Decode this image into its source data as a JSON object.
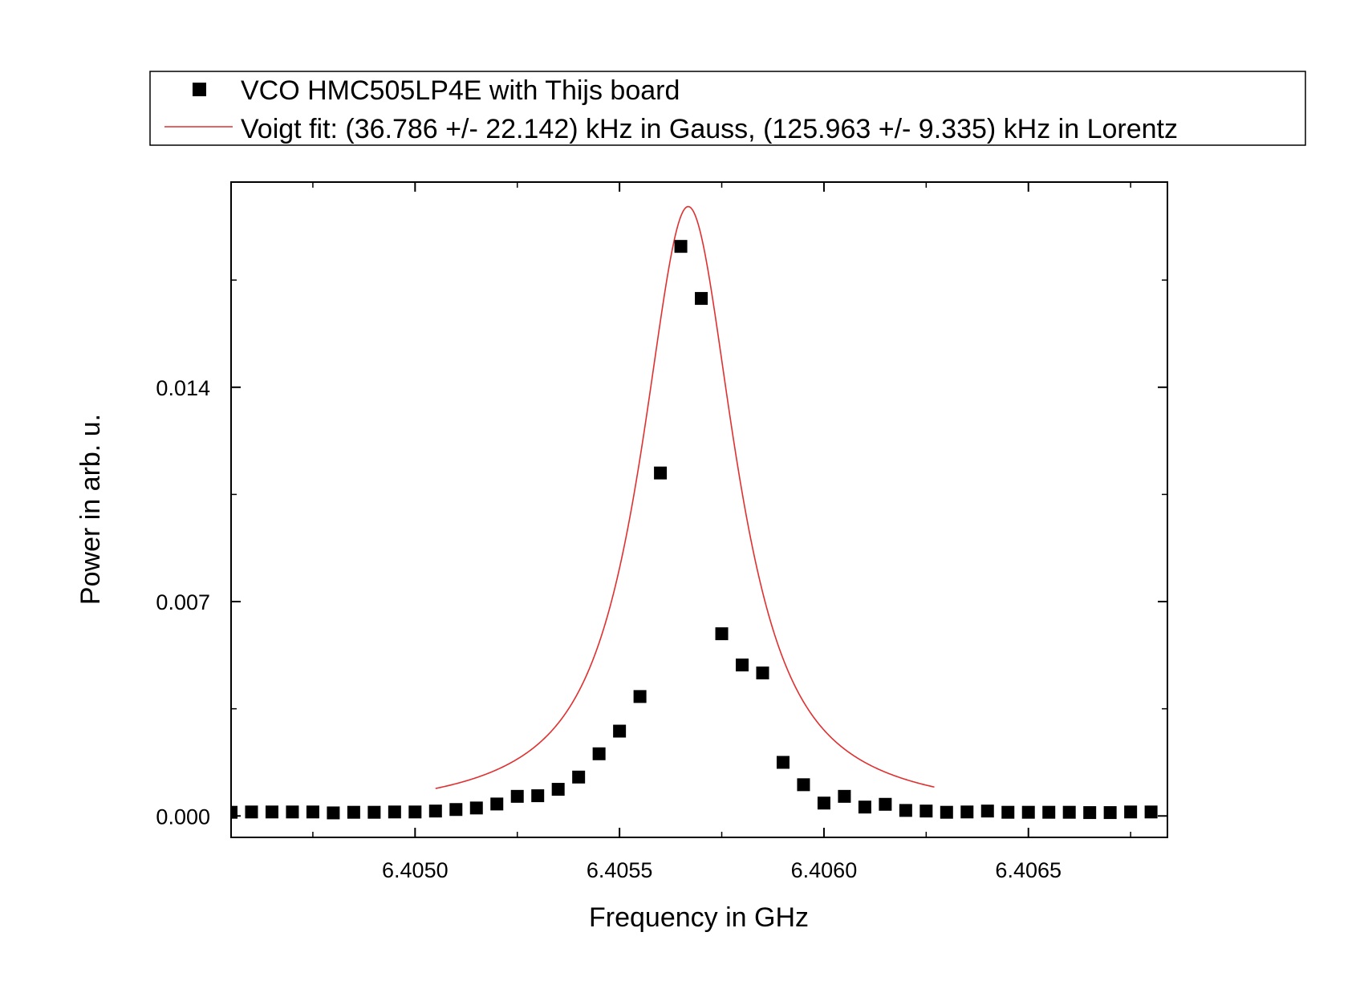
{
  "chart_data": {
    "type": "scatter",
    "xlabel": "Frequency in GHz",
    "ylabel": "Power in arb. u.",
    "xlim": [
      6.40455,
      6.40684
    ],
    "ylim": [
      -0.0007,
      0.0207
    ],
    "x_ticks": [
      6.405,
      6.4055,
      6.406,
      6.4065
    ],
    "x_tick_labels": [
      "6.4050",
      "6.4055",
      "6.4060",
      "6.4065"
    ],
    "y_ticks": [
      0.0,
      0.007,
      0.014
    ],
    "y_tick_labels": [
      "0.000",
      "0.007",
      "0.014"
    ],
    "legend_position": "top, above plot",
    "series": [
      {
        "name": "VCO HMC505LP4E with Thijs board",
        "kind": "markers",
        "marker": "square",
        "color": "#000000",
        "x": [
          6.40455,
          6.4046,
          6.40465,
          6.4047,
          6.40475,
          6.4048,
          6.40485,
          6.4049,
          6.40495,
          6.405,
          6.40505,
          6.4051,
          6.40515,
          6.4052,
          6.40525,
          6.4053,
          6.40535,
          6.4054,
          6.40545,
          6.4055,
          6.40555,
          6.4056,
          6.40565,
          6.4057,
          6.40575,
          6.4058,
          6.40585,
          6.4059,
          6.40595,
          6.406,
          6.40605,
          6.4061,
          6.40615,
          6.4062,
          6.40625,
          6.4063,
          6.40635,
          6.4064,
          6.40645,
          6.4065,
          6.40655,
          6.4066,
          6.40665,
          6.4067,
          6.40675,
          6.4068
        ],
        "y": [
          0.00012,
          0.00013,
          0.00013,
          0.00013,
          0.00013,
          0.0001,
          0.00012,
          0.00012,
          0.00013,
          0.00013,
          0.00016,
          0.00021,
          0.00026,
          0.00039,
          0.00064,
          0.00066,
          0.00087,
          0.00127,
          0.00203,
          0.00277,
          0.0039,
          0.0112,
          0.0186,
          0.0169,
          0.00595,
          0.00493,
          0.00467,
          0.00175,
          0.00102,
          0.00042,
          0.00064,
          0.00029,
          0.00038,
          0.00018,
          0.00016,
          0.00012,
          0.00013,
          0.00016,
          0.00012,
          0.00012,
          0.00012,
          0.00012,
          0.00011,
          0.00011,
          0.00013,
          0.00013
        ]
      },
      {
        "name": "Voigt fit: (36.786 +/- 22.142) kHz in Gauss, (125.963 +/- 9.335) kHz in Lorentz",
        "kind": "line",
        "color": "#e03030",
        "model": {
          "center": 6.405668,
          "peak": 0.0199,
          "gauss_sigma_ghz": 3.6786e-05,
          "lorentz_gamma_ghz": 0.000125963,
          "baseline": 0.0,
          "x_range": [
            6.40505,
            6.40627
          ]
        }
      }
    ]
  }
}
